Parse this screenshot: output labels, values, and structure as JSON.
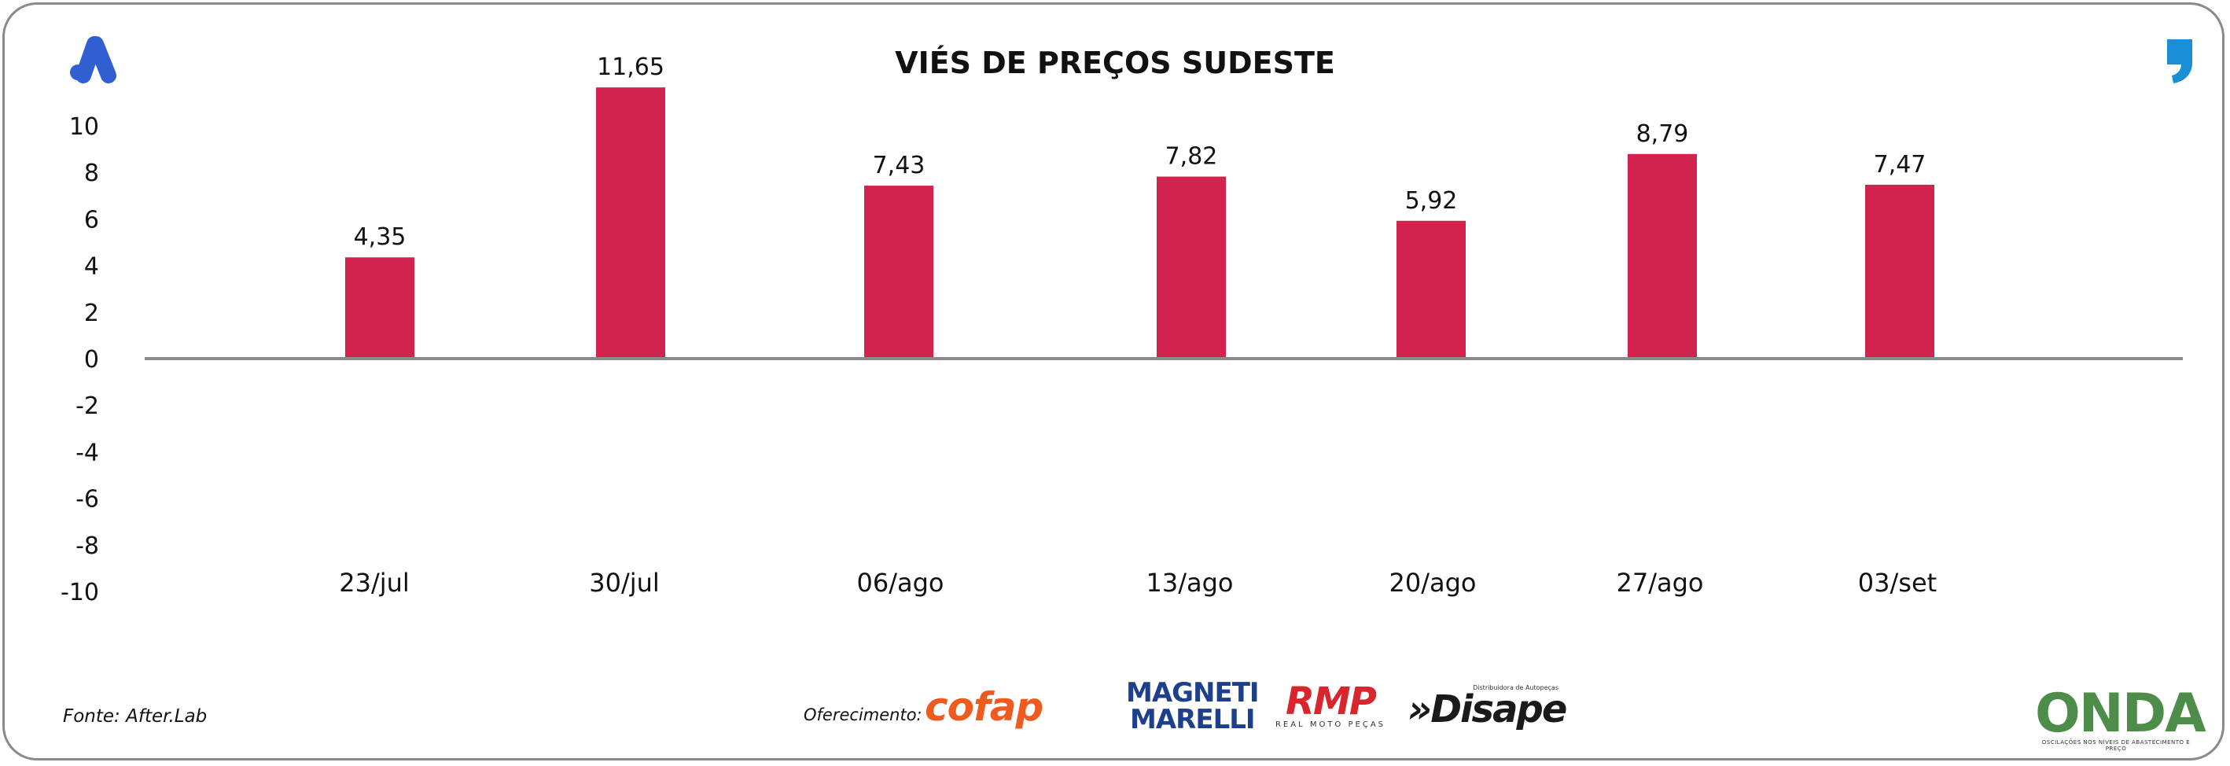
{
  "chart_data": {
    "type": "bar",
    "title": "VIÉS DE PREÇOS SUDESTE",
    "categories": [
      "23/jul",
      "30/jul",
      "06/ago",
      "13/ago",
      "20/ago",
      "27/ago",
      "03/set"
    ],
    "values": [
      4.35,
      11.65,
      7.43,
      7.82,
      5.92,
      8.79,
      7.47
    ],
    "value_labels": [
      "4,35",
      "11,65",
      "7,43",
      "7,82",
      "5,92",
      "8,79",
      "7,47"
    ],
    "ylim": [
      -10,
      10
    ],
    "y_ticks": [
      10,
      8,
      6,
      4,
      2,
      0,
      -2,
      -4,
      -6,
      -8,
      -10
    ],
    "xlabel": "",
    "ylabel": "",
    "grid": false,
    "legend": "none",
    "bar_color": "#d2234f",
    "axis_color": "#8a8a8a"
  },
  "footer": {
    "source": "Fonte: After.Lab",
    "sponsor_label": "Oferecimento:"
  },
  "logos": {
    "cofap": "cofap",
    "magneti_line1": "MAGNETI",
    "magneti_line2": "MARELLI",
    "rmp": "RMP",
    "rmp_sub": "REAL MOTO PEÇAS",
    "disape_top": "Distribuidora de Autopeças",
    "disape": "»Disape",
    "onda": "ONDA",
    "onda_sub": "OSCILAÇÕES NOS NÍVEIS DE ABASTECIMENTO E PREÇO"
  },
  "colors": {
    "brand_blue": "#2f5fd0",
    "accent_blue": "#1a8fd8"
  }
}
